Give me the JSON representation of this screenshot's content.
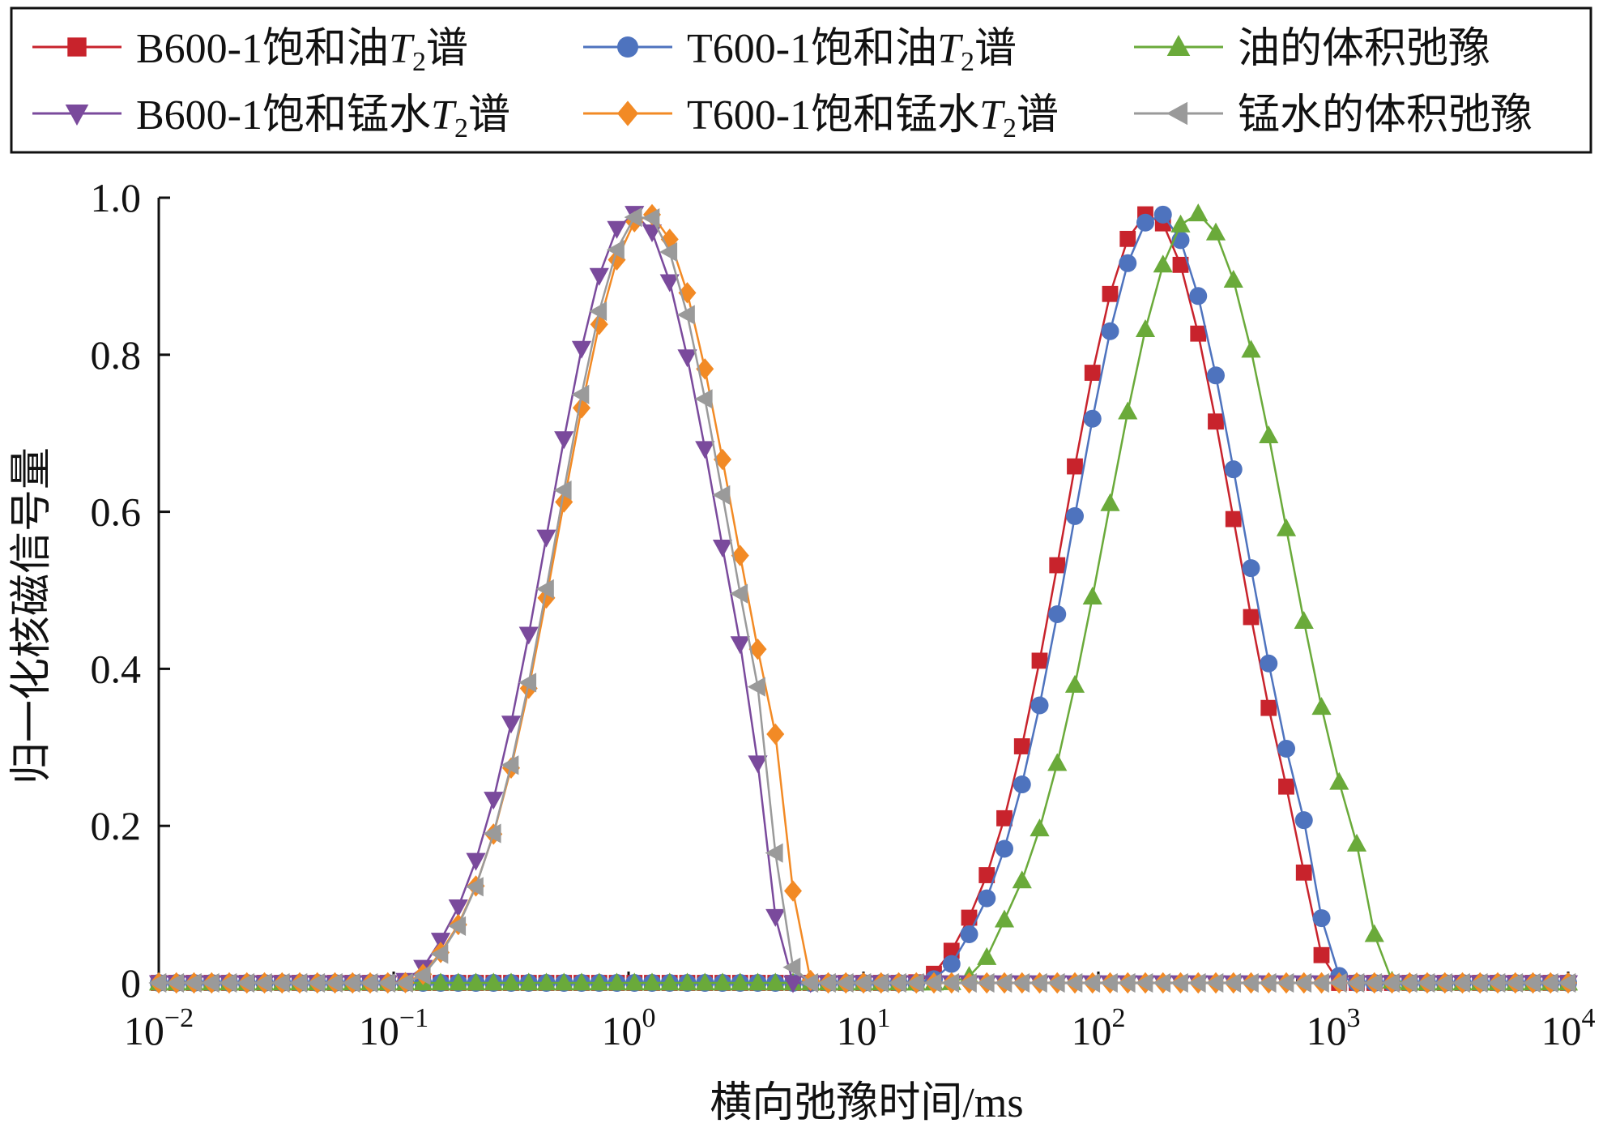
{
  "chart_data": {
    "type": "line",
    "xlabel": "横向弛豫时间/ms",
    "ylabel": "归一化核磁信号量",
    "x_scale": "log",
    "xlim": [
      0.01,
      10000
    ],
    "ylim": [
      0,
      1.0
    ],
    "x_ticks": [
      {
        "base": "10",
        "exp": "−2",
        "value": 0.01
      },
      {
        "base": "10",
        "exp": "−1",
        "value": 0.1
      },
      {
        "base": "10",
        "exp": "0",
        "value": 1
      },
      {
        "base": "10",
        "exp": "1",
        "value": 10
      },
      {
        "base": "10",
        "exp": "2",
        "value": 100
      },
      {
        "base": "10",
        "exp": "3",
        "value": 1000
      },
      {
        "base": "10",
        "exp": "4",
        "value": 10000
      }
    ],
    "y_ticks": [
      {
        "label": "0",
        "value": 0
      },
      {
        "label": "0.2",
        "value": 0.2
      },
      {
        "label": "0.4",
        "value": 0.4
      },
      {
        "label": "0.6",
        "value": 0.6
      },
      {
        "label": "0.8",
        "value": 0.8
      },
      {
        "label": "1.0",
        "value": 1.0
      }
    ],
    "grid": false,
    "legend_position": "top",
    "series": [
      {
        "name_prefix": "B600-1饱和油",
        "name_italic": "T",
        "name_sub": "2",
        "name_suffix": "谱",
        "color": "#c8232c",
        "marker": "square",
        "peak_x": 165,
        "sigma_log": 0.36,
        "min_x": 14,
        "max_x": 1000
      },
      {
        "name_prefix": "T600-1饱和油",
        "name_italic": "T",
        "name_sub": "2",
        "name_suffix": "谱",
        "color": "#4e73be",
        "marker": "circle",
        "peak_x": 180,
        "sigma_log": 0.36,
        "min_x": 15,
        "max_x": 1100
      },
      {
        "name_prefix": "油的体积弛豫",
        "name_italic": "",
        "name_sub": "",
        "name_suffix": "",
        "color": "#6aaa3a",
        "marker": "triangle-up",
        "peak_x": 260,
        "sigma_log": 0.38,
        "min_x": 22,
        "max_x": 1800
      },
      {
        "name_prefix": "B600-1饱和锰水",
        "name_italic": "T",
        "name_sub": "2",
        "name_suffix": "谱",
        "color": "#7a4a9c",
        "marker": "triangle-down",
        "peak_x": 1.05,
        "sigma_log": 0.36,
        "min_x": 0.085,
        "max_x": 4.8
      },
      {
        "name_prefix": "T600-1饱和锰水",
        "name_italic": "T",
        "name_sub": "2",
        "name_suffix": "谱",
        "color": "#f28a25",
        "marker": "diamond",
        "peak_x": 1.2,
        "sigma_log": 0.37,
        "min_x": 0.09,
        "max_x": 6.0
      },
      {
        "name_prefix": "锰水的体积弛豫",
        "name_italic": "",
        "name_sub": "",
        "name_suffix": "",
        "color": "#9a9a9a",
        "marker": "triangle-left",
        "peak_x": 1.15,
        "sigma_log": 0.36,
        "min_x": 0.09,
        "max_x": 5.2
      }
    ]
  }
}
